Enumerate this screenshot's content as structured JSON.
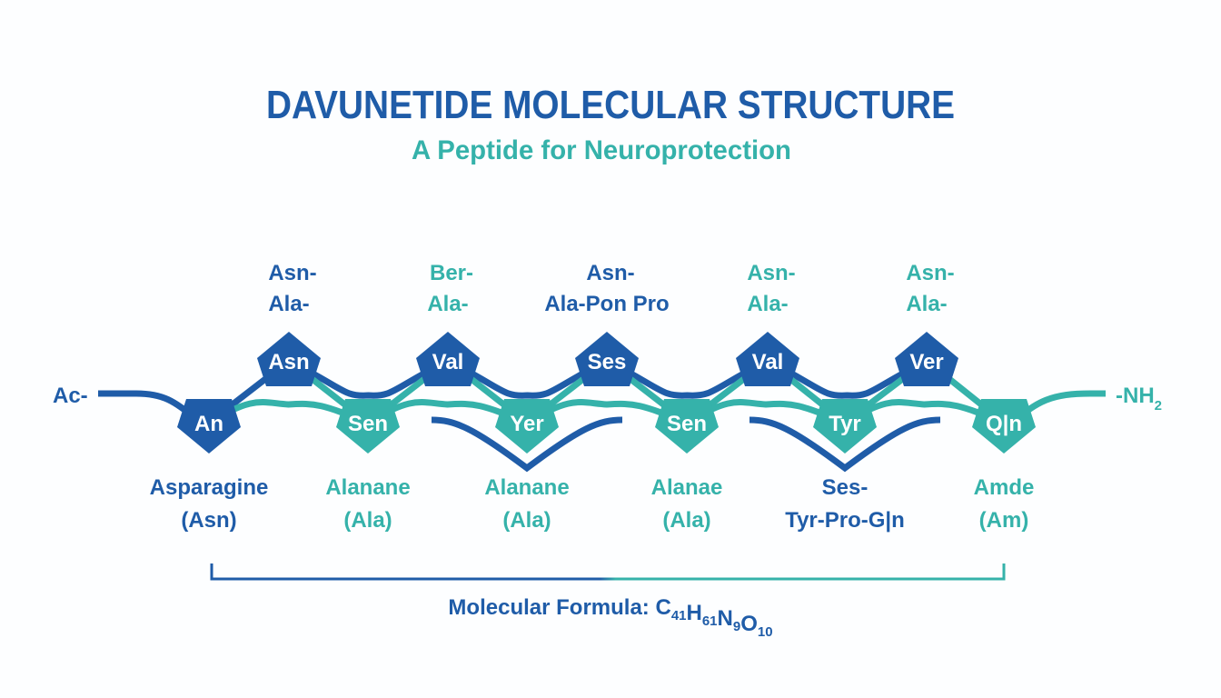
{
  "title": "DAVUNETIDE MOLECULAR STRUCTURE",
  "subtitle": "A Peptide for Neuroprotection",
  "colors": {
    "primary": "#1f5ca8",
    "accent": "#35b2aa"
  },
  "terminals": {
    "n_term": "Ac-",
    "c_term": "-NH",
    "c_term_sub": "2"
  },
  "top_nodes": [
    {
      "label": "Asn",
      "line1": "Asn-",
      "line2": "Ala-",
      "label_color": "primary"
    },
    {
      "label": "Val",
      "line1": "Ber-",
      "line2": "Ala-",
      "label_color": "accent"
    },
    {
      "label": "Ses",
      "line1": "Asn-",
      "line2": "Ala-Pon Pro",
      "label_color": "primary"
    },
    {
      "label": "Val",
      "line1": "Asn-",
      "line2": "Ala-",
      "label_color": "accent"
    },
    {
      "label": "Ver",
      "line1": "Asn-",
      "line2": "Ala-",
      "label_color": "accent"
    }
  ],
  "bottom_nodes": [
    {
      "label": "An",
      "color": "primary",
      "line1": "Asparagine",
      "line2": "(Asn)",
      "label_color": "primary"
    },
    {
      "label": "Sen",
      "color": "accent",
      "line1": "Alanane",
      "line2": "(Ala)",
      "label_color": "accent"
    },
    {
      "label": "Yer",
      "color": "accent",
      "line1": "Alanane",
      "line2": "(Ala)",
      "label_color": "accent"
    },
    {
      "label": "Sen",
      "color": "accent",
      "line1": "Alanae",
      "line2": "(Ala)",
      "label_color": "accent"
    },
    {
      "label": "Tyr",
      "color": "accent",
      "line1": "Ses-",
      "line2": "Tyr-Pro-G|n",
      "label_color": "primary"
    },
    {
      "label": "Q|n",
      "color": "accent",
      "line1": "Amde",
      "line2": "(Am)",
      "label_color": "accent"
    }
  ],
  "formula": {
    "prefix": "Molecular Formula: ",
    "parts": [
      [
        "C",
        "41"
      ],
      [
        "H",
        "61"
      ],
      [
        "N",
        "9"
      ],
      [
        "O",
        "10"
      ]
    ]
  }
}
